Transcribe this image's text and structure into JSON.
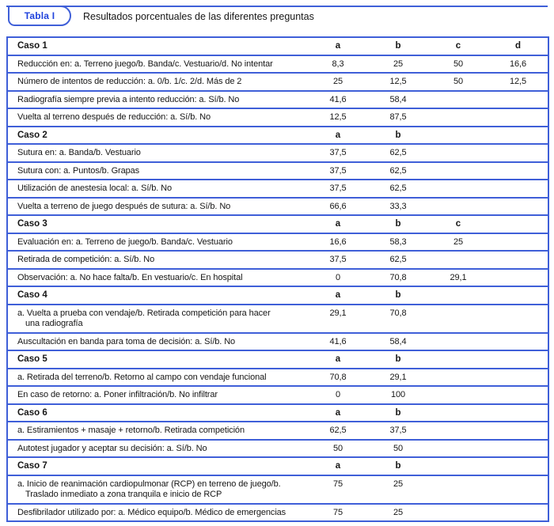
{
  "header": {
    "badge": "Tabla I",
    "caption": "Resultados porcentuales de las diferentes preguntas"
  },
  "colors": {
    "accent_blue": "#3f5fd8",
    "badge_text_blue": "#2043dd",
    "text": "#161616"
  },
  "table": {
    "sections": [
      {
        "title": "Caso 1",
        "columns": [
          "a",
          "b",
          "c",
          "d"
        ],
        "rows": [
          {
            "label": "Reducción en: a. Terreno juego/b. Banda/c. Vestuario/d. No intentar",
            "values": [
              "8,3",
              "25",
              "50",
              "16,6"
            ]
          },
          {
            "label": "Número de intentos de reducción: a. 0/b. 1/c. 2/d. Más de 2",
            "values": [
              "25",
              "12,5",
              "50",
              "12,5"
            ]
          },
          {
            "label": "Radiografía siempre previa a intento reducción: a. Sí/b. No",
            "values": [
              "41,6",
              "58,4"
            ]
          },
          {
            "label": "Vuelta al terreno después de reducción: a. Sí/b. No",
            "values": [
              "12,5",
              "87,5"
            ]
          }
        ]
      },
      {
        "title": "Caso 2",
        "columns": [
          "a",
          "b"
        ],
        "rows": [
          {
            "label": "Sutura en: a. Banda/b. Vestuario",
            "values": [
              "37,5",
              "62,5"
            ]
          },
          {
            "label": "Sutura con: a. Puntos/b. Grapas",
            "values": [
              "37,5",
              "62,5"
            ]
          },
          {
            "label": "Utilización de anestesia local: a. Sí/b. No",
            "values": [
              "37,5",
              "62,5"
            ]
          },
          {
            "label": "Vuelta a terreno de juego después de sutura: a. Sí/b. No",
            "values": [
              "66,6",
              "33,3"
            ]
          }
        ]
      },
      {
        "title": "Caso 3",
        "columns": [
          "a",
          "b",
          "c"
        ],
        "rows": [
          {
            "label": "Evaluación en: a. Terreno de juego/b. Banda/c. Vestuario",
            "values": [
              "16,6",
              "58,3",
              "25"
            ]
          },
          {
            "label": "Retirada de competición: a. Sí/b. No",
            "values": [
              "37,5",
              "62,5"
            ]
          },
          {
            "label": "Observación: a. No hace falta/b. En vestuario/c. En hospital",
            "values": [
              "0",
              "70,8",
              "29,1"
            ]
          }
        ]
      },
      {
        "title": "Caso 4",
        "columns": [
          "a",
          "b"
        ],
        "rows": [
          {
            "label": "a. Vuelta a prueba con vendaje/b. Retirada competición para hacer",
            "label2": "una radiografía",
            "values": [
              "29,1",
              "70,8"
            ]
          },
          {
            "label": "Auscultación en banda para toma de decisión: a. Sí/b. No",
            "values": [
              "41,6",
              "58,4"
            ]
          }
        ]
      },
      {
        "title": "Caso 5",
        "columns": [
          "a",
          "b"
        ],
        "rows": [
          {
            "label": "a. Retirada del terreno/b. Retorno al campo con vendaje funcional",
            "values": [
              "70,8",
              "29,1"
            ]
          },
          {
            "label": "En caso de retorno: a. Poner infiltración/b. No infiltrar",
            "values": [
              "0",
              "100"
            ]
          }
        ]
      },
      {
        "title": "Caso 6",
        "columns": [
          "a",
          "b"
        ],
        "rows": [
          {
            "label": "a. Estiramientos + masaje + retorno/b. Retirada competición",
            "values": [
              "62,5",
              "37,5"
            ]
          },
          {
            "label": "Autotest jugador y aceptar su decisión: a. Sí/b. No",
            "values": [
              "50",
              "50"
            ]
          }
        ]
      },
      {
        "title": "Caso 7",
        "columns": [
          "a",
          "b"
        ],
        "rows": [
          {
            "label": "a. Inicio de reanimación cardiopulmonar (RCP) en terreno de juego/b.",
            "label2": "Traslado inmediato a zona tranquila e inicio de RCP",
            "values": [
              "75",
              "25"
            ]
          },
          {
            "label": "Desfibrilador utilizado por: a. Médico equipo/b. Médico de emergencias",
            "values": [
              "75",
              "25"
            ]
          }
        ]
      }
    ]
  }
}
